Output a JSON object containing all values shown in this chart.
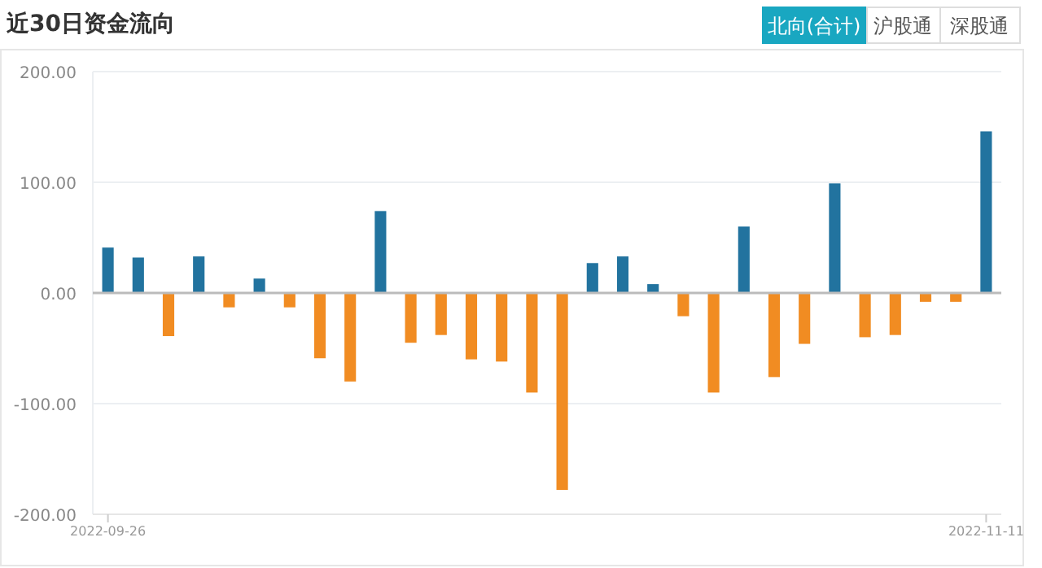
{
  "chart_data": {
    "type": "bar",
    "title": "近30日资金流向",
    "annotations": [
      "北向(合计)",
      "沪股通",
      "深股通"
    ],
    "categories": [
      "2022-09-26",
      null,
      null,
      null,
      null,
      null,
      null,
      null,
      null,
      null,
      null,
      null,
      null,
      null,
      null,
      null,
      null,
      null,
      null,
      null,
      null,
      null,
      null,
      null,
      null,
      null,
      null,
      null,
      null,
      "2022-11-11"
    ],
    "values": [
      41,
      32,
      -39,
      33,
      -13,
      13,
      -13,
      -59,
      -80,
      74,
      -45,
      -38,
      -60,
      -62,
      -90,
      -178,
      27,
      33,
      8,
      -21,
      -90,
      60,
      -76,
      -46,
      99,
      -40,
      -38,
      -8,
      -8,
      146
    ],
    "colors": [
      "#22739f",
      "#22739f",
      "#f18c22",
      "#22739f",
      "#f18c22",
      "#22739f",
      "#f18c22",
      "#f18c22",
      "#f18c22",
      "#22739f",
      "#f18c22",
      "#f18c22",
      "#f18c22",
      "#f18c22",
      "#f18c22",
      "#f18c22",
      "#22739f",
      "#22739f",
      "#22739f",
      "#f18c22",
      "#f18c22",
      "#22739f",
      "#f18c22",
      "#f18c22",
      "#22739f",
      "#f18c22",
      "#f18c22",
      "#f18c22",
      "#f18c22",
      "#22739f"
    ],
    "ylim": [
      -200,
      200
    ],
    "yticks": [
      {
        "value": -200,
        "label": "-200.00"
      },
      {
        "value": -100,
        "label": "-100.00"
      },
      {
        "value": 0,
        "label": "0.00"
      },
      {
        "value": 100,
        "label": "100.00"
      },
      {
        "value": 200,
        "label": "200.00"
      }
    ],
    "grid": "y"
  }
}
